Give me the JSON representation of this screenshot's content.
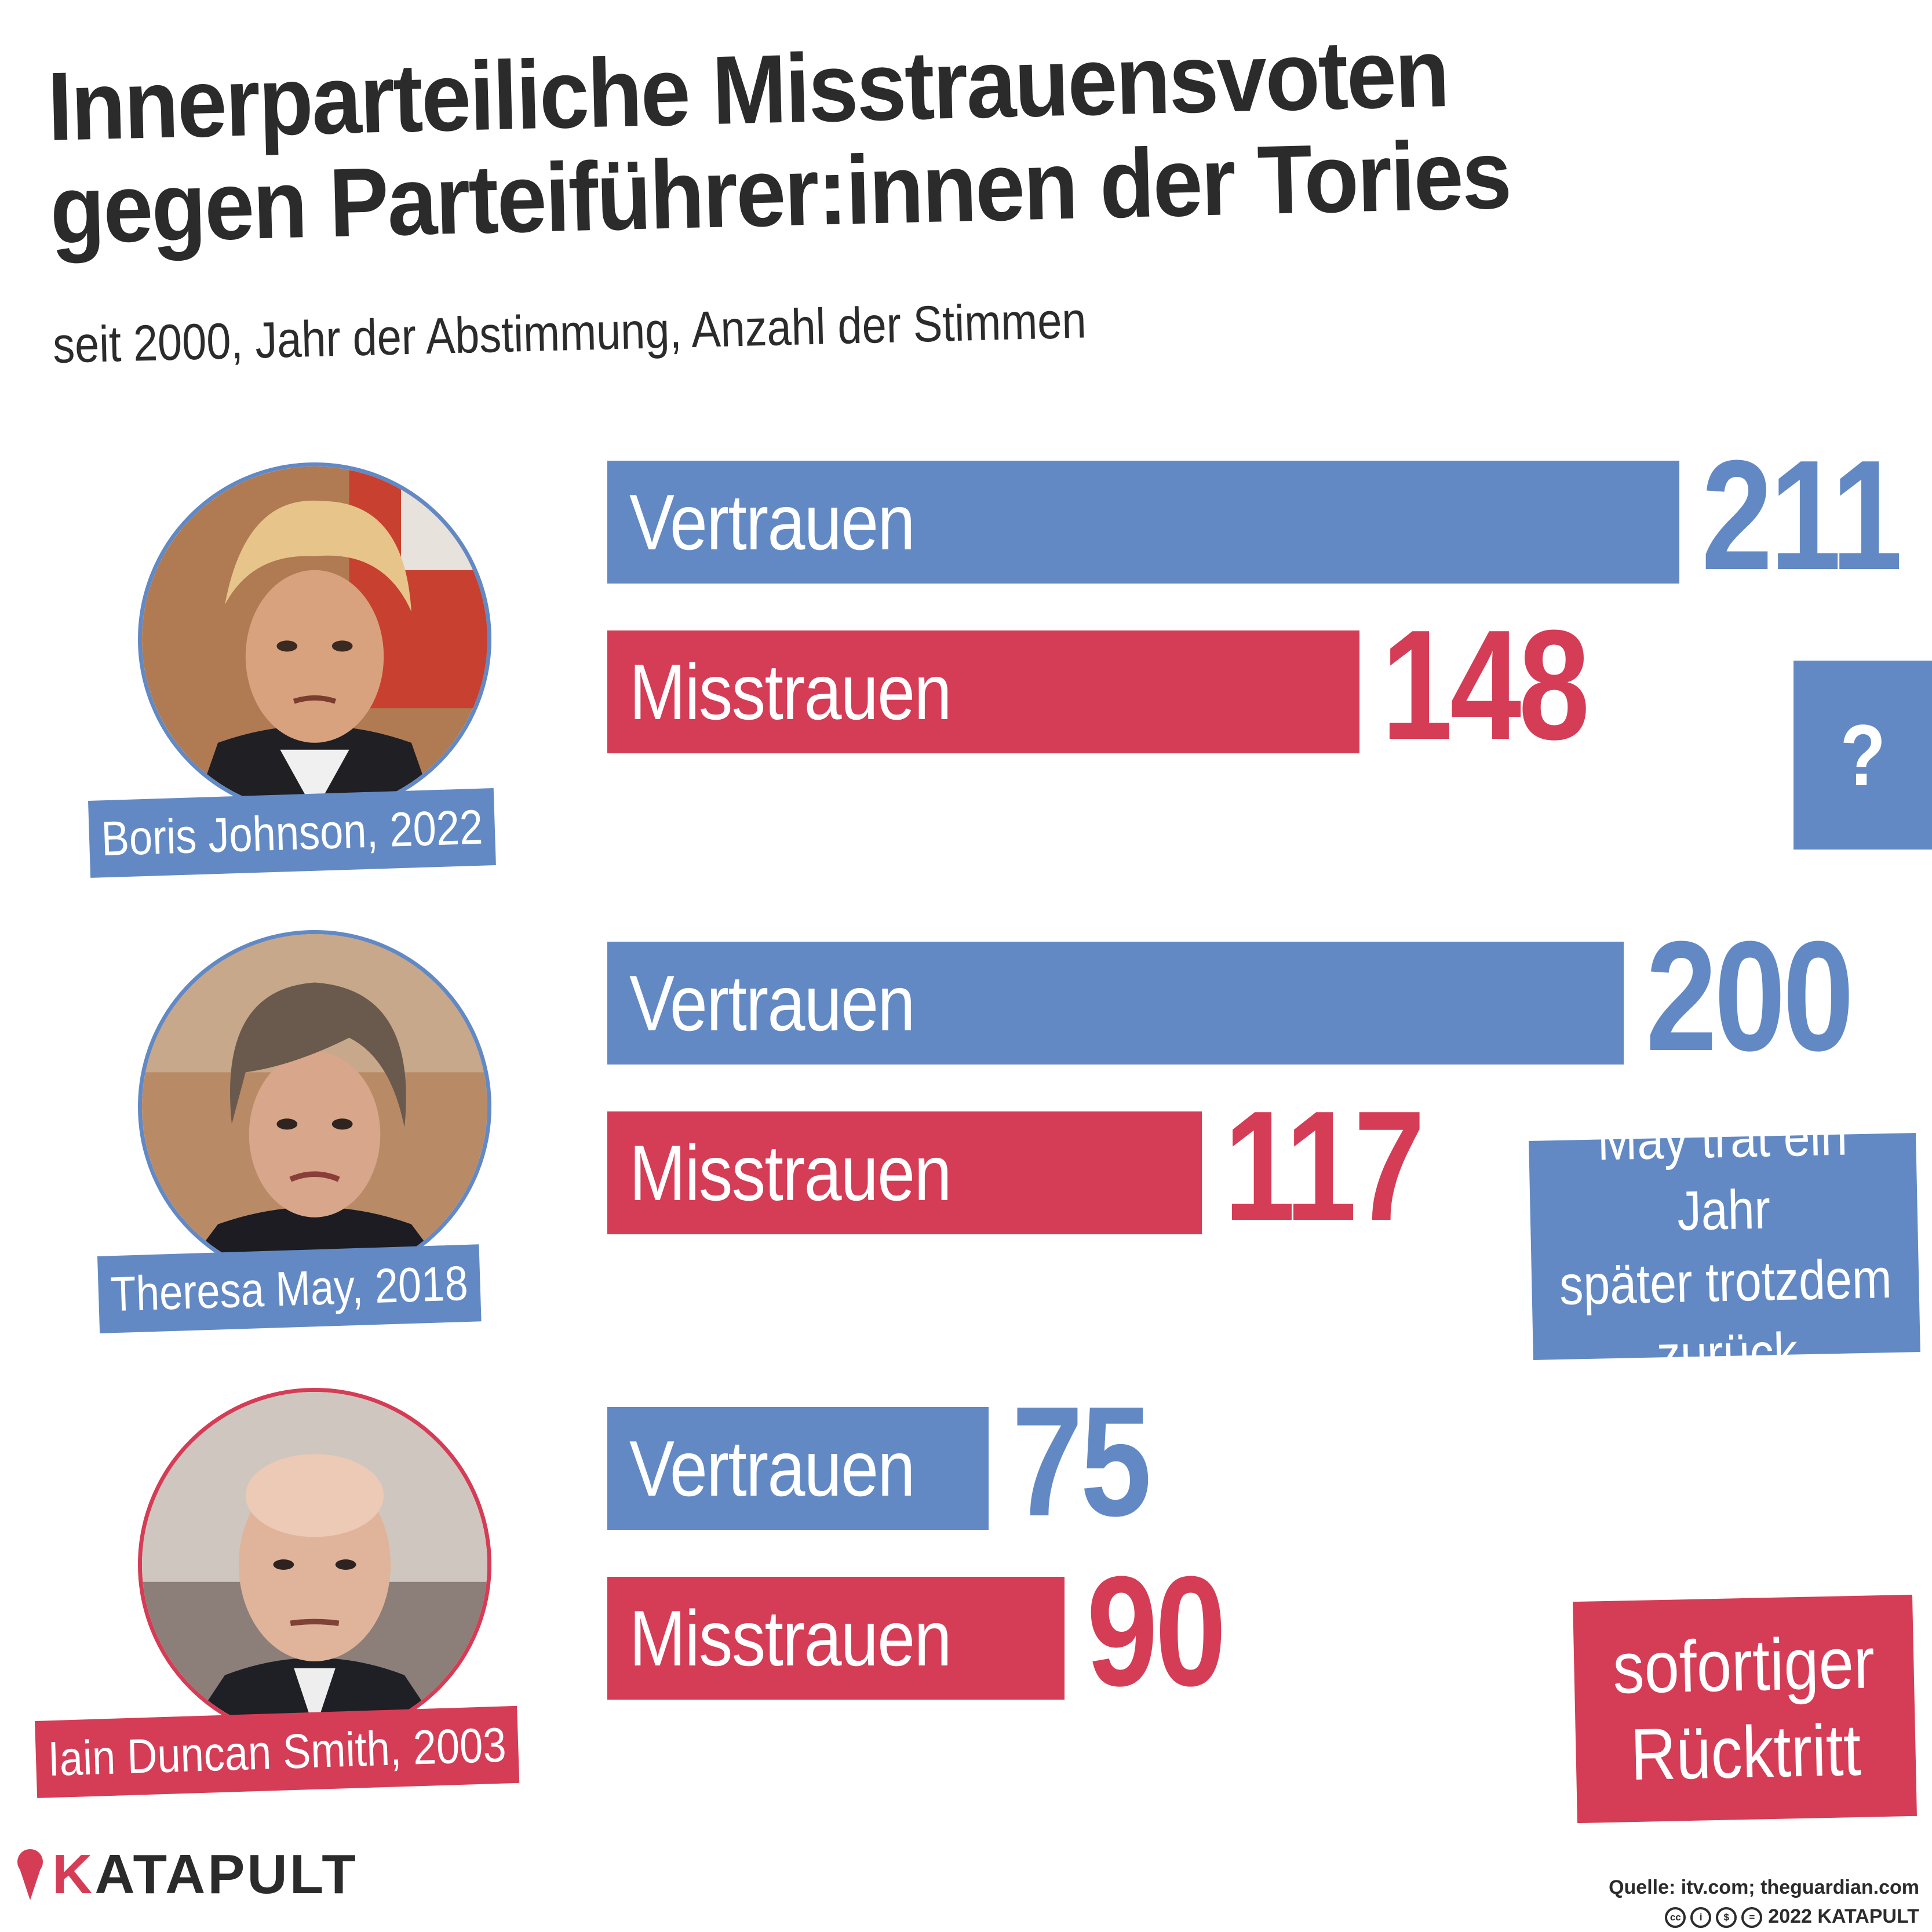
{
  "header": {
    "title_line1": "Innerparteiliche Misstrauensvoten",
    "title_line2": "gegen Parteiführer:innen der Tories",
    "subtitle": "seit 2000, Jahr der Abstimmung, Anzahl der Stimmen"
  },
  "colors": {
    "confidence": "#6289c4",
    "no_confidence": "#d53c55",
    "text": "#2b2b2b"
  },
  "chart_data": {
    "type": "bar",
    "orientation": "horizontal",
    "title": "Innerparteiliche Misstrauensvoten gegen Parteiführer:innen der Tories",
    "subtitle": "seit 2000, Jahr der Abstimmung, Anzahl der Stimmen",
    "series_names": [
      "Vertrauen",
      "Misstrauen"
    ],
    "groups": [
      {
        "leader": "Boris Johnson, 2022",
        "vertrauen": 211,
        "misstrauen": 148,
        "outcome": "?"
      },
      {
        "leader": "Theresa May, 2018",
        "vertrauen": 200,
        "misstrauen": 117,
        "outcome": "May trat ein Jahr später trotzdem zurück"
      },
      {
        "leader": "Iain Duncan Smith, 2003",
        "vertrauen": 75,
        "misstrauen": 90,
        "outcome": "sofortiger Rücktritt"
      }
    ],
    "xlim": [
      0,
      211
    ]
  },
  "labels": {
    "vertrauen": "Vertrauen",
    "misstrauen": "Misstrauen"
  },
  "outcomes": {
    "johnson": "?",
    "may_line1": "May trat ein Jahr",
    "may_line2": "später trotzdem",
    "may_line3": "zurück",
    "ids_line1": "sofortiger",
    "ids_line2": "Rücktritt"
  },
  "footer": {
    "brand": "ATAPULT",
    "brand_initial": "K",
    "source": "Quelle: itv.com; theguardian.com",
    "copyright": "2022 KATAPULT",
    "license_icons": [
      "cc-icon",
      "by-icon",
      "nc-icon",
      "nd-icon"
    ]
  }
}
